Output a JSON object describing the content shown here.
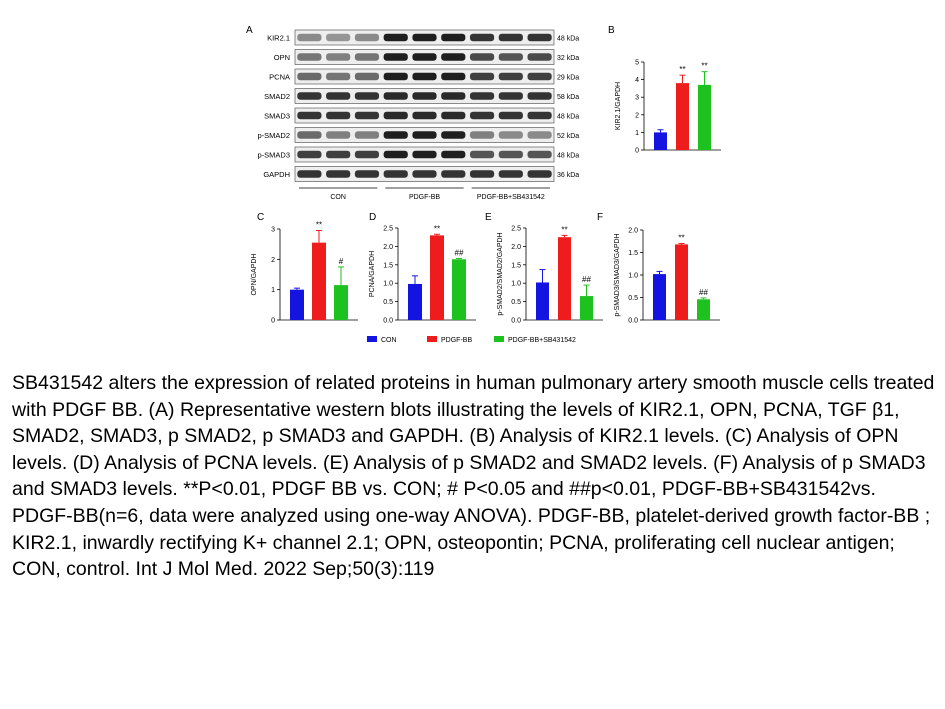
{
  "blot": {
    "panel_letter": "A",
    "rows": [
      {
        "protein": "KIR2.1",
        "size": "48 kDa",
        "levels": [
          0.45,
          0.4,
          0.45,
          0.95,
          0.95,
          0.95,
          0.85,
          0.85,
          0.85
        ]
      },
      {
        "protein": "OPN",
        "size": "32 kDa",
        "levels": [
          0.55,
          0.5,
          0.55,
          0.95,
          0.95,
          0.95,
          0.75,
          0.7,
          0.75
        ]
      },
      {
        "protein": "PCNA",
        "size": "29 kDa",
        "levels": [
          0.6,
          0.55,
          0.6,
          0.95,
          0.95,
          0.95,
          0.8,
          0.8,
          0.8
        ]
      },
      {
        "protein": "SMAD2",
        "size": "58 kDa",
        "levels": [
          0.85,
          0.85,
          0.85,
          0.9,
          0.9,
          0.9,
          0.85,
          0.85,
          0.85
        ]
      },
      {
        "protein": "SMAD3",
        "size": "48 kDa",
        "levels": [
          0.85,
          0.85,
          0.85,
          0.9,
          0.9,
          0.9,
          0.85,
          0.85,
          0.85
        ]
      },
      {
        "protein": "p-SMAD2",
        "size": "52 kDa",
        "levels": [
          0.6,
          0.5,
          0.5,
          0.95,
          0.95,
          0.95,
          0.5,
          0.45,
          0.45
        ]
      },
      {
        "protein": "p-SMAD3",
        "size": "48 kDa",
        "levels": [
          0.8,
          0.8,
          0.8,
          0.95,
          0.95,
          0.95,
          0.7,
          0.7,
          0.7
        ]
      },
      {
        "protein": "GAPDH",
        "size": "36 kDa",
        "levels": [
          0.85,
          0.85,
          0.85,
          0.85,
          0.85,
          0.85,
          0.85,
          0.85,
          0.85
        ]
      }
    ],
    "groups": [
      "CON",
      "PDGF-BB",
      "PDGF-BB+SB431542"
    ]
  },
  "legend": [
    {
      "label": "CON",
      "color": "#1414e0"
    },
    {
      "label": "PDGF-BB",
      "color": "#ee1c1c"
    },
    {
      "label": "PDGF-BB+SB431542",
      "color": "#1ec21e"
    }
  ],
  "chart_data": [
    {
      "panel": "B",
      "type": "bar",
      "ylabel": "KIR2.1/GAPDH",
      "ylim": [
        0,
        5
      ],
      "yticks": [
        "0",
        "1",
        "2",
        "3",
        "4",
        "5"
      ],
      "categories": [
        "CON",
        "PDGF-BB",
        "PDGF-BB+SB431542"
      ],
      "values": [
        1.0,
        3.8,
        3.7
      ],
      "errors": [
        0.15,
        0.45,
        0.75
      ],
      "annotations": [
        "",
        "**",
        "**"
      ]
    },
    {
      "panel": "C",
      "type": "bar",
      "ylabel": "OPN/GAPDH",
      "ylim": [
        0,
        3
      ],
      "yticks": [
        "0",
        "1",
        "2",
        "3"
      ],
      "categories": [
        "CON",
        "PDGF-BB",
        "PDGF-BB+SB431542"
      ],
      "values": [
        1.0,
        2.55,
        1.15
      ],
      "errors": [
        0.05,
        0.4,
        0.6
      ],
      "annotations": [
        "",
        "**",
        "#"
      ]
    },
    {
      "panel": "D",
      "type": "bar",
      "ylabel": "PCNA/GAPDH",
      "ylim": [
        0,
        2.5
      ],
      "yticks": [
        "0.0",
        "0.5",
        "1.0",
        "1.5",
        "2.0",
        "2.5"
      ],
      "categories": [
        "CON",
        "PDGF-BB",
        "PDGF-BB+SB431542"
      ],
      "values": [
        0.98,
        2.3,
        1.65
      ],
      "errors": [
        0.22,
        0.03,
        0.02
      ],
      "annotations": [
        "",
        "**",
        "##"
      ]
    },
    {
      "panel": "E",
      "type": "bar",
      "ylabel": "p-SMAD2/SMAD2/GAPDH",
      "ylim": [
        0,
        2.5
      ],
      "yticks": [
        "0.0",
        "0.5",
        "1.0",
        "1.5",
        "2.0",
        "2.5"
      ],
      "categories": [
        "CON",
        "PDGF-BB",
        "PDGF-BB+SB431542"
      ],
      "values": [
        1.02,
        2.25,
        0.65
      ],
      "errors": [
        0.35,
        0.05,
        0.3
      ],
      "annotations": [
        "",
        "**",
        "##"
      ]
    },
    {
      "panel": "F",
      "type": "bar",
      "ylabel": "p-SMAD3/SMAD3/GAPDH",
      "ylim": [
        0,
        2.0
      ],
      "yticks": [
        "0.0",
        "0.5",
        "1.0",
        "1.5",
        "2.0"
      ],
      "categories": [
        "CON",
        "PDGF-BB",
        "PDGF-BB+SB431542"
      ],
      "values": [
        1.02,
        1.68,
        0.46
      ],
      "errors": [
        0.06,
        0.02,
        0.03
      ],
      "annotations": [
        "",
        "**",
        "##"
      ]
    }
  ],
  "caption": "SB431542 alters the expression of related proteins in human pulmonary artery smooth muscle cells treated with PDGF BB. (A) Representative western blots illustrating the levels of KIR2.1, OPN, PCNA, TGF β1, SMAD2, SMAD3, p SMAD2, p SMAD3 and GAPDH. (B) Analysis of KIR2.1 levels. (C) Analysis of OPN levels. (D) Analysis of PCNA levels. (E) Analysis of p SMAD2 and SMAD2 levels. (F) Analysis of p SMAD3 and SMAD3 levels. **P<0.01, PDGF BB vs. CON; # P<0.05 and ##p<0.01, PDGF-BB+SB431542vs. PDGF-BB(n=6, data were analyzed using one-way ANOVA). PDGF-BB, platelet-derived growth factor-BB ; KIR2.1, inwardly rectifying K+ channel 2.1; OPN, osteopontin; PCNA, proliferating cell nuclear antigen; CON, control. Int J Mol Med. 2022 Sep;50(3):119"
}
